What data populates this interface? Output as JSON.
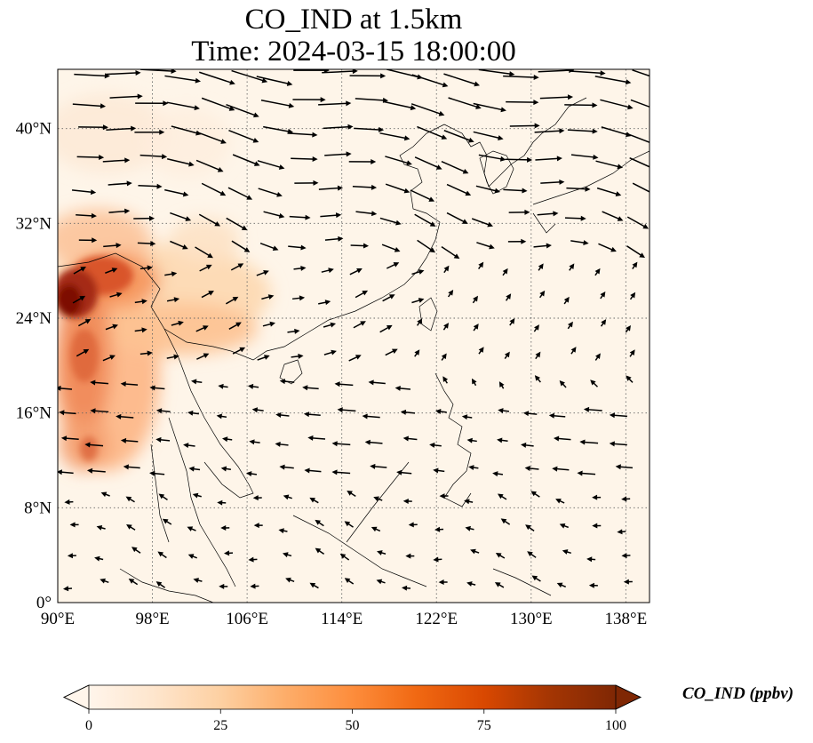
{
  "title": {
    "line1": "CO_IND at 1.5km",
    "line2": "Time: 2024-03-15 18:00:00"
  },
  "map": {
    "lon_range": [
      90,
      140
    ],
    "lat_range": [
      0,
      45
    ],
    "lon_ticks": [
      "90°E",
      "98°E",
      "106°E",
      "114°E",
      "122°E",
      "130°E",
      "138°E"
    ],
    "lat_ticks": [
      "0°",
      "8°N",
      "16°N",
      "24°N",
      "32°N",
      "40°N"
    ],
    "gridlines": "dotted",
    "background_color": "#fef5e9",
    "coastline_color": "#000000"
  },
  "colorbar": {
    "label": "CO_IND (ppbv)",
    "ticks": [
      "0",
      "25",
      "50",
      "75",
      "100"
    ],
    "range": [
      0,
      100
    ],
    "extend": "both",
    "colormap": [
      "#fff5eb",
      "#fee6ce",
      "#fdd0a2",
      "#fdae6b",
      "#fd8d3c",
      "#f16913",
      "#d94801",
      "#a63603",
      "#7f2704"
    ]
  }
}
